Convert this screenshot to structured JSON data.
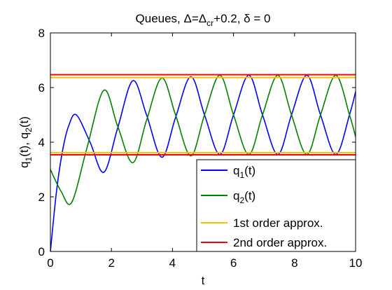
{
  "chart_data": {
    "type": "line",
    "title": [
      "Queues, Δ=Δ",
      "cr",
      "+0.2, δ = 0"
    ],
    "xlabel": "t",
    "ylabel": [
      "q",
      "1",
      "(t), q",
      "2",
      "(t)"
    ],
    "xlim": [
      0,
      10
    ],
    "xticks": [
      0,
      2,
      4,
      6,
      8,
      10
    ],
    "ylim": [
      0,
      8
    ],
    "yticks": [
      0,
      2,
      4,
      6,
      8
    ],
    "series": [
      {
        "name": [
          "q",
          "1",
          "(t)"
        ],
        "color": "#0000ff",
        "x": [
          0,
          0.2,
          0.4,
          0.6,
          0.85,
          1.3,
          1.75,
          2.2,
          2.7,
          3.15,
          3.65,
          4.1,
          4.6,
          5.05,
          5.55,
          6.0,
          6.5,
          6.95,
          7.45,
          7.9,
          8.4,
          8.85,
          9.35,
          9.8,
          10
        ],
        "values": [
          0,
          2.2,
          3.7,
          4.6,
          5.0,
          4.0,
          2.9,
          4.5,
          6.25,
          5.0,
          3.45,
          4.9,
          6.4,
          5.0,
          3.55,
          5.0,
          6.45,
          5.0,
          3.55,
          5.0,
          6.45,
          5.0,
          3.55,
          5.0,
          5.85
        ]
      },
      {
        "name": [
          "q",
          "2",
          "(t)"
        ],
        "color": "#008000",
        "x": [
          0,
          0.35,
          0.7,
          1.2,
          1.75,
          2.2,
          2.7,
          3.15,
          3.65,
          4.1,
          4.6,
          5.05,
          5.55,
          6.0,
          6.5,
          6.95,
          7.45,
          7.9,
          8.4,
          8.85,
          9.35,
          9.8,
          10
        ],
        "values": [
          3.0,
          2.2,
          1.8,
          3.8,
          5.9,
          4.6,
          3.25,
          4.8,
          6.35,
          5.0,
          3.5,
          5.0,
          6.45,
          5.0,
          3.55,
          5.0,
          6.45,
          5.0,
          3.55,
          5.0,
          6.45,
          5.0,
          4.2
        ]
      }
    ],
    "hlines": [
      {
        "name": "1st order approx.",
        "color": "#f5c000",
        "values": [
          6.37,
          3.62
        ]
      },
      {
        "name": "2nd order approx.",
        "color": "#ff0000",
        "values": [
          6.47,
          3.54
        ]
      }
    ]
  }
}
